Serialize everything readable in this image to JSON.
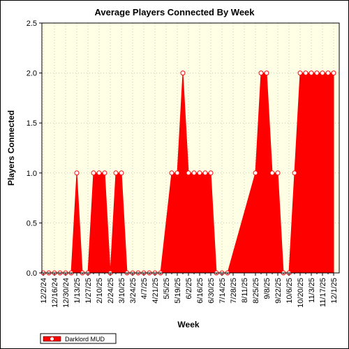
{
  "chart_data": {
    "type": "area",
    "title": "Average Players Connected By Week",
    "xlabel": "Week",
    "ylabel": "Players Connected",
    "ylim": [
      0,
      2.5
    ],
    "yticks": [
      "0.0",
      "0.5",
      "1.0",
      "1.5",
      "2.0",
      "2.5"
    ],
    "x_tick_labels": [
      "12/2/24",
      "12/16/24",
      "12/30/24",
      "1/13/25",
      "1/27/25",
      "2/10/25",
      "2/24/25",
      "3/10/25",
      "3/24/25",
      "4/7/25",
      "4/21/25",
      "5/5/25",
      "5/19/25",
      "6/2/25",
      "6/16/25",
      "6/30/25",
      "7/14/25",
      "7/28/25",
      "8/11/25",
      "8/25/25",
      "9/8/25",
      "9/22/25",
      "10/6/25",
      "10/20/25",
      "11/3/25",
      "11/17/25",
      "12/1/25"
    ],
    "grid": true,
    "legend_position": "bottom-left",
    "colors": {
      "fill": "#ff0000",
      "plot_background": "#ffffe6",
      "grid": "#c8c8b4"
    },
    "series": [
      {
        "name": "Darklord MUD",
        "points": [
          {
            "x": "12/2/24",
            "y": 0
          },
          {
            "x": "12/9/24",
            "y": 0
          },
          {
            "x": "12/16/24",
            "y": 0
          },
          {
            "x": "12/23/24",
            "y": 0
          },
          {
            "x": "12/30/24",
            "y": 0
          },
          {
            "x": "1/6/25",
            "y": 0
          },
          {
            "x": "1/13/25",
            "y": 1
          },
          {
            "x": "1/20/25",
            "y": 0
          },
          {
            "x": "1/27/25",
            "y": 0
          },
          {
            "x": "2/3/25",
            "y": 1
          },
          {
            "x": "2/10/25",
            "y": 1
          },
          {
            "x": "2/17/25",
            "y": 1
          },
          {
            "x": "2/24/25",
            "y": 0
          },
          {
            "x": "3/3/25",
            "y": 1
          },
          {
            "x": "3/10/25",
            "y": 1
          },
          {
            "x": "3/17/25",
            "y": 0
          },
          {
            "x": "3/24/25",
            "y": 0
          },
          {
            "x": "3/31/25",
            "y": 0
          },
          {
            "x": "4/7/25",
            "y": 0
          },
          {
            "x": "4/14/25",
            "y": 0
          },
          {
            "x": "4/21/25",
            "y": 0
          },
          {
            "x": "4/28/25",
            "y": 0
          },
          {
            "x": "5/12/25",
            "y": 1
          },
          {
            "x": "5/19/25",
            "y": 1
          },
          {
            "x": "5/26/25",
            "y": 2
          },
          {
            "x": "6/2/25",
            "y": 1
          },
          {
            "x": "6/9/25",
            "y": 1
          },
          {
            "x": "6/16/25",
            "y": 1
          },
          {
            "x": "6/23/25",
            "y": 1
          },
          {
            "x": "6/30/25",
            "y": 1
          },
          {
            "x": "7/7/25",
            "y": 0
          },
          {
            "x": "7/14/25",
            "y": 0
          },
          {
            "x": "7/21/25",
            "y": 0
          },
          {
            "x": "8/25/25",
            "y": 1
          },
          {
            "x": "9/1/25",
            "y": 2
          },
          {
            "x": "9/8/25",
            "y": 2
          },
          {
            "x": "9/15/25",
            "y": 1
          },
          {
            "x": "9/22/25",
            "y": 1
          },
          {
            "x": "9/29/25",
            "y": 0
          },
          {
            "x": "10/6/25",
            "y": 0
          },
          {
            "x": "10/13/25",
            "y": 1
          },
          {
            "x": "10/20/25",
            "y": 2
          },
          {
            "x": "10/27/25",
            "y": 2
          },
          {
            "x": "11/3/25",
            "y": 2
          },
          {
            "x": "11/10/25",
            "y": 2
          },
          {
            "x": "11/17/25",
            "y": 2
          },
          {
            "x": "11/24/25",
            "y": 2
          },
          {
            "x": "12/1/25",
            "y": 2
          }
        ]
      }
    ]
  }
}
